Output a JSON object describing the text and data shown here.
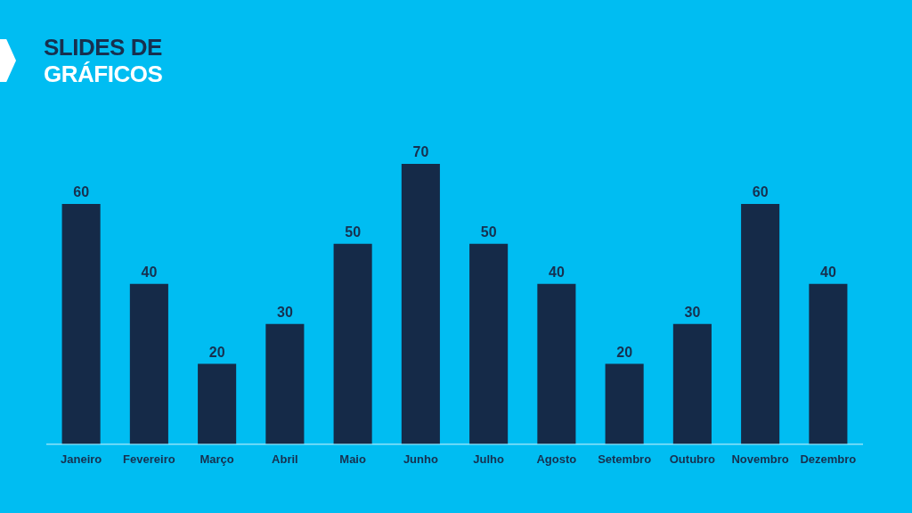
{
  "chart_data": {
    "type": "bar",
    "title": "SLIDES DE",
    "subtitle": "GRÁFICOS",
    "categories": [
      "Janeiro",
      "Fevereiro",
      "Março",
      "Abril",
      "Maio",
      "Junho",
      "Julho",
      "Agosto",
      "Setembro",
      "Outubro",
      "Novembro",
      "Dezembro"
    ],
    "values": [
      60,
      40,
      20,
      30,
      50,
      70,
      50,
      40,
      20,
      30,
      60,
      40
    ],
    "color": "#152a48",
    "data_labels": true,
    "tick_labels": "x"
  }
}
